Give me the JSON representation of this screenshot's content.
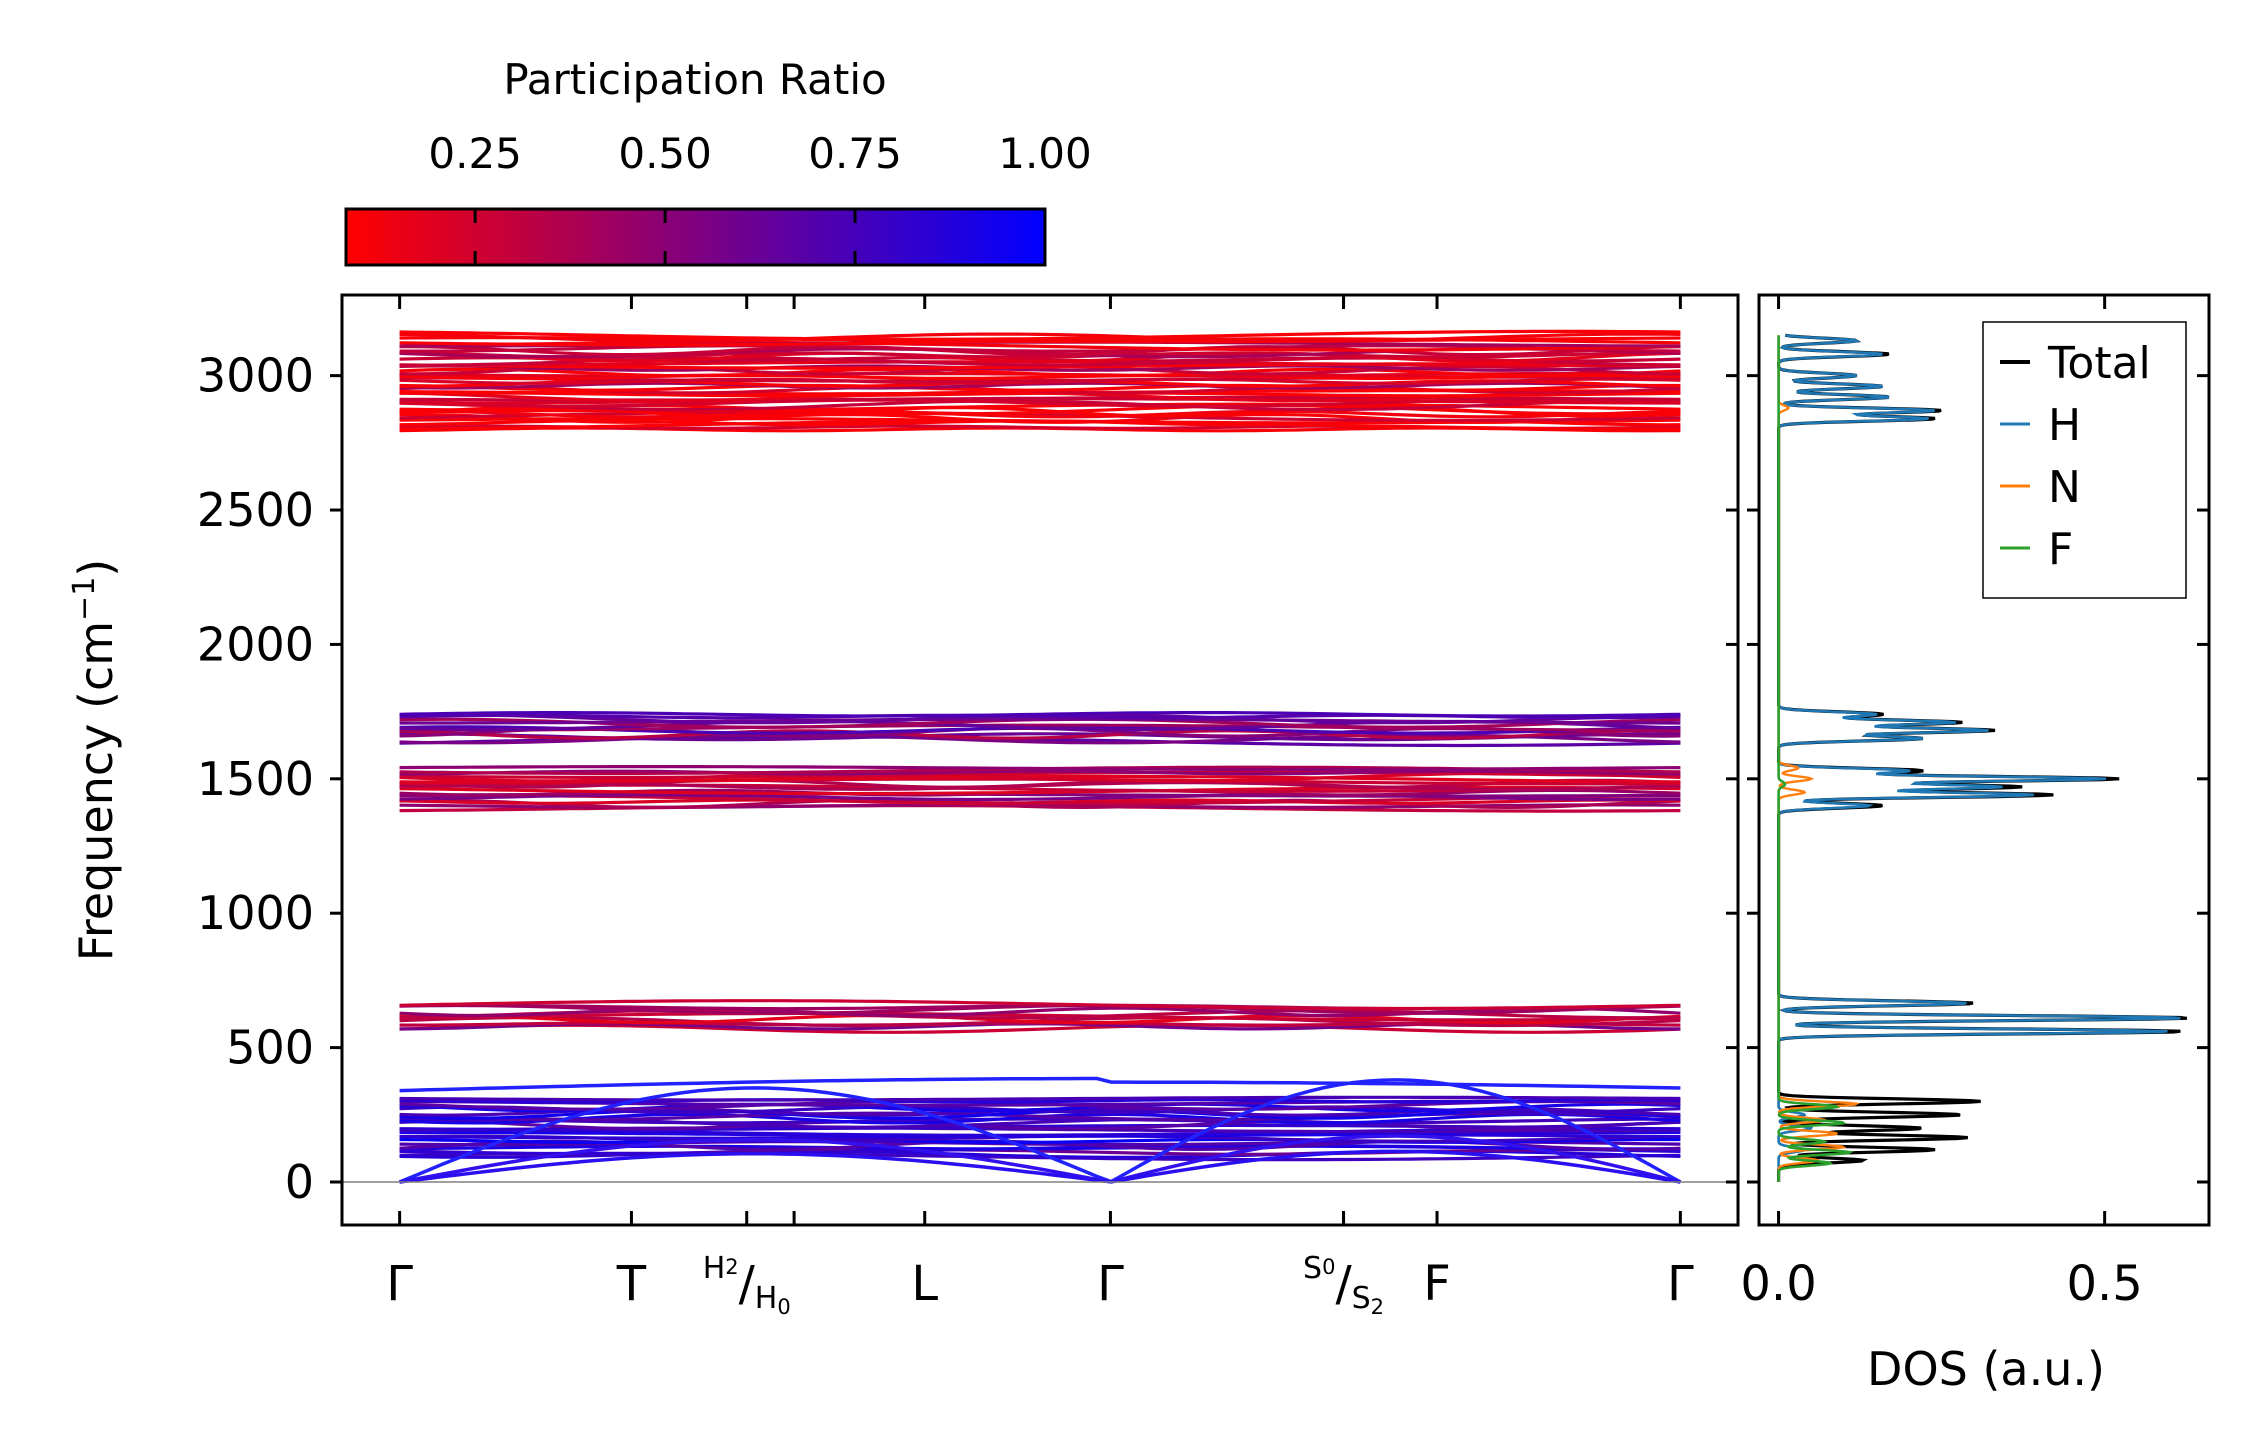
{
  "colors": {
    "cmap_low": "#ff0000",
    "cmap_high": "#0000ff",
    "total": "#000000",
    "H": "#1f77b4",
    "N": "#ff7f0e",
    "F": "#2ca02c",
    "zero_line": "#808080"
  },
  "chart_data": [
    {
      "type": "line",
      "panel": "band-structure",
      "ylabel": "Frequency (cm",
      "ylabel_sup": "−1",
      "ylabel_end": ")",
      "ylim": [
        -160,
        3300
      ],
      "yticks": [
        0,
        500,
        1000,
        1500,
        2000,
        2500,
        3000
      ],
      "xlim": [
        -0.045,
        1.045
      ],
      "path_points": [
        {
          "x": 0.0,
          "main": "Γ"
        },
        {
          "x": 0.181,
          "main": "T"
        },
        {
          "x": 0.271,
          "sup": "H",
          "subsup": "2",
          "slash": "/",
          "sub": "H",
          "subsub": "0"
        },
        {
          "x": 0.41,
          "main": "L"
        },
        {
          "x": 0.555,
          "main": "Γ"
        },
        {
          "x": 0.737,
          "sup": "S",
          "subsup": "0",
          "slash": "/",
          "sub": "S",
          "subsub": "2"
        },
        {
          "x": 0.81,
          "main": "F"
        },
        {
          "x": 1.0,
          "main": "Γ"
        }
      ],
      "extra_ticks": [
        0.308,
        0.737
      ],
      "band_groups": [
        {
          "range": [
            2800,
            3150
          ],
          "pr": 0.2
        },
        {
          "range": [
            1640,
            1740
          ],
          "pr": 0.55
        },
        {
          "range": [
            1390,
            1540
          ],
          "pr": 0.4
        },
        {
          "range": [
            570,
            660
          ],
          "pr": 0.35
        },
        {
          "range": [
            95,
            310
          ],
          "pr": 0.8
        }
      ],
      "acoustic_max": [
        350,
        410,
        380
      ]
    },
    {
      "type": "line",
      "panel": "dos",
      "xlabel": "DOS (a.u.)",
      "xlim": [
        -0.03,
        0.66
      ],
      "xticks": [
        0.0,
        0.5
      ],
      "xtick_labels": [
        "0.0",
        "0.5"
      ],
      "ylim": [
        -160,
        3300
      ],
      "legend_position": "upper right",
      "series": [
        {
          "name": "Total",
          "peaks": [
            [
              80,
              0.13
            ],
            [
              120,
              0.24
            ],
            [
              165,
              0.29
            ],
            [
              200,
              0.22
            ],
            [
              250,
              0.28
            ],
            [
              300,
              0.31
            ],
            [
              560,
              0.62
            ],
            [
              610,
              0.63
            ],
            [
              665,
              0.3
            ],
            [
              1400,
              0.16
            ],
            [
              1440,
              0.42
            ],
            [
              1470,
              0.37
            ],
            [
              1500,
              0.52
            ],
            [
              1530,
              0.22
            ],
            [
              1650,
              0.22
            ],
            [
              1680,
              0.33
            ],
            [
              1710,
              0.28
            ],
            [
              1740,
              0.16
            ],
            [
              2840,
              0.24
            ],
            [
              2870,
              0.25
            ],
            [
              2920,
              0.17
            ],
            [
              2960,
              0.16
            ],
            [
              3000,
              0.12
            ],
            [
              3080,
              0.17
            ],
            [
              3130,
              0.12
            ]
          ]
        },
        {
          "name": "H",
          "peaks": [
            [
              120,
              0.04
            ],
            [
              200,
              0.05
            ],
            [
              250,
              0.04
            ],
            [
              560,
              0.6
            ],
            [
              610,
              0.62
            ],
            [
              665,
              0.29
            ],
            [
              1400,
              0.14
            ],
            [
              1440,
              0.39
            ],
            [
              1470,
              0.34
            ],
            [
              1500,
              0.5
            ],
            [
              1530,
              0.2
            ],
            [
              1650,
              0.22
            ],
            [
              1680,
              0.32
            ],
            [
              1710,
              0.27
            ],
            [
              1740,
              0.15
            ],
            [
              2840,
              0.23
            ],
            [
              2870,
              0.24
            ],
            [
              2920,
              0.17
            ],
            [
              2960,
              0.16
            ],
            [
              3000,
              0.12
            ],
            [
              3080,
              0.16
            ],
            [
              3130,
              0.12
            ]
          ]
        },
        {
          "name": "N",
          "peaks": [
            [
              80,
              0.06
            ],
            [
              130,
              0.1
            ],
            [
              180,
              0.09
            ],
            [
              230,
              0.07
            ],
            [
              290,
              0.12
            ],
            [
              1450,
              0.04
            ],
            [
              1500,
              0.05
            ],
            [
              1540,
              0.03
            ],
            [
              2880,
              0.015
            ]
          ]
        },
        {
          "name": "F",
          "peaks": [
            [
              70,
              0.08
            ],
            [
              110,
              0.11
            ],
            [
              150,
              0.07
            ],
            [
              220,
              0.1
            ],
            [
              280,
              0.09
            ],
            [
              1480,
              0.01
            ]
          ]
        }
      ]
    },
    {
      "type": "heatmap",
      "panel": "colorbar",
      "title": "Participation Ratio",
      "range": [
        0.08,
        1.0
      ],
      "ticks": [
        0.25,
        0.5,
        0.75,
        1.0
      ],
      "tick_labels": [
        "0.25",
        "0.50",
        "0.75",
        "1.00"
      ]
    }
  ]
}
